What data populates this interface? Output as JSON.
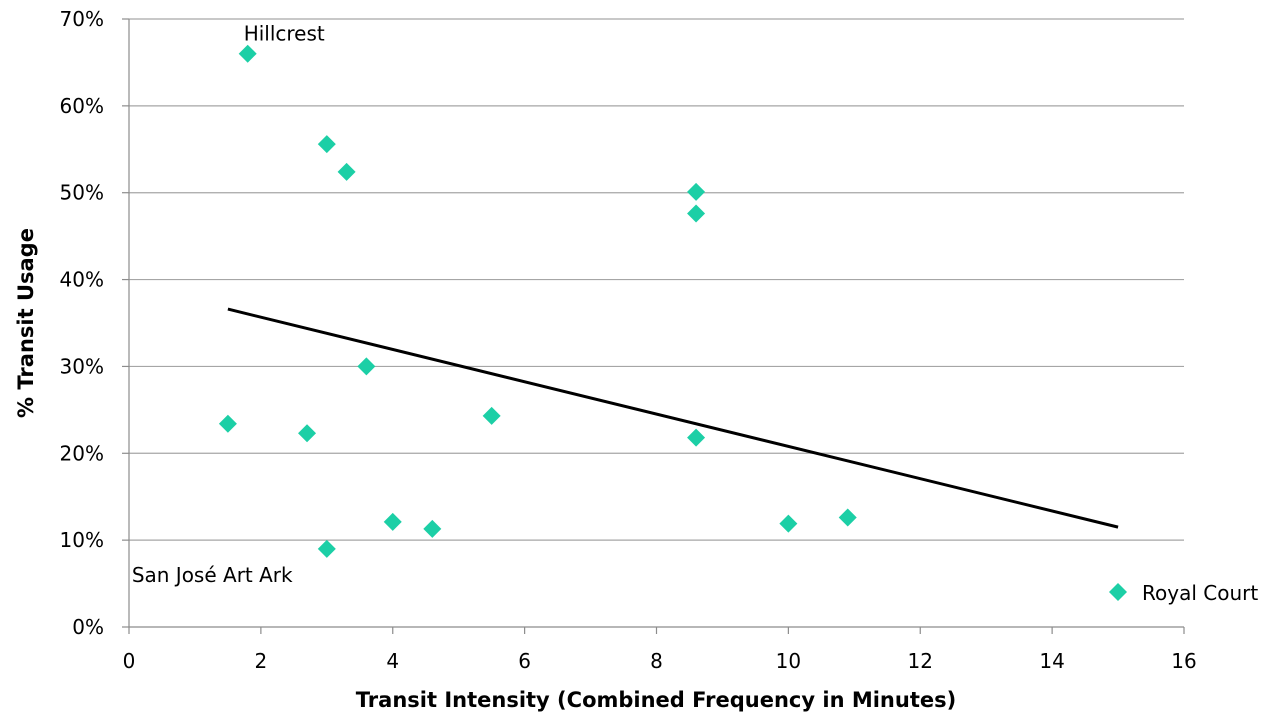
{
  "chart_data": {
    "type": "scatter",
    "xlabel": "Transit Intensity (Combined Frequency in Minutes)",
    "ylabel": "% Transit Usage",
    "xlim": [
      0,
      16
    ],
    "ylim": [
      0,
      0.7
    ],
    "x_ticks": [
      0,
      2,
      4,
      6,
      8,
      10,
      12,
      14,
      16
    ],
    "y_ticks": [
      0,
      0.1,
      0.2,
      0.3,
      0.4,
      0.5,
      0.6,
      0.7
    ],
    "x_tick_labels": [
      "0",
      "2",
      "4",
      "6",
      "8",
      "10",
      "12",
      "14",
      "16"
    ],
    "y_tick_labels": [
      "0%",
      "10%",
      "20%",
      "30%",
      "40%",
      "50%",
      "60%",
      "70%"
    ],
    "grid": "horizontal",
    "legend_position": "bottom-right",
    "series": [
      {
        "name": "Royal Court",
        "color": "#1ccfa6",
        "marker": "diamond",
        "x": [
          1.8,
          3.0,
          3.3,
          8.6,
          8.6,
          3.6,
          1.5,
          2.7,
          5.5,
          8.6,
          4.0,
          4.6,
          3.0,
          10.0,
          10.9
        ],
        "y": [
          0.66,
          0.556,
          0.524,
          0.501,
          0.476,
          0.3,
          0.234,
          0.223,
          0.243,
          0.218,
          0.121,
          0.113,
          0.09,
          0.119,
          0.126
        ]
      }
    ],
    "trendline": {
      "type": "linear",
      "color": "#000000",
      "x": [
        1.5,
        15.0
      ],
      "y": [
        0.366,
        0.115
      ]
    },
    "annotations": [
      {
        "text": "Hillcrest",
        "x": 1.8,
        "y": 0.66
      },
      {
        "text": "San José Art Ark",
        "x": 3.0,
        "y": 0.09
      }
    ]
  }
}
